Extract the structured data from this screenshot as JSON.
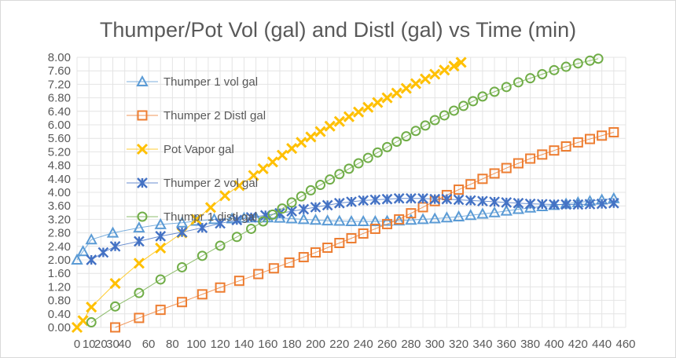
{
  "chart_data": {
    "type": "scatter",
    "title": "Thumper/Pot Vol (gal) and Distl (gal) vs Time (min)",
    "xlim": [
      0,
      460
    ],
    "ylim": [
      0,
      8
    ],
    "x_ticks": [
      "0",
      "10",
      "20",
      "30",
      "40",
      "60",
      "80",
      "100",
      "120",
      "140",
      "160",
      "180",
      "200",
      "220",
      "240",
      "260",
      "280",
      "300",
      "320",
      "340",
      "360",
      "380",
      "400",
      "420",
      "440",
      "460"
    ],
    "y_ticks": [
      "0.00",
      "0.40",
      "0.80",
      "1.20",
      "1.60",
      "2.00",
      "2.40",
      "2.80",
      "3.20",
      "3.60",
      "4.00",
      "4.40",
      "4.80",
      "5.20",
      "5.60",
      "6.00",
      "6.40",
      "6.80",
      "7.20",
      "7.60",
      "8.00"
    ],
    "grid": true,
    "legend_position": "upper-left",
    "series": [
      {
        "name": "Thumper 1 vol gal",
        "marker": "triangle",
        "color": "#5b9bd5",
        "x": [
          0,
          5,
          12,
          30,
          52,
          70,
          88,
          100,
          115,
          130,
          140,
          150,
          160,
          170,
          180,
          190,
          200,
          210,
          220,
          230,
          240,
          250,
          260,
          270,
          280,
          290,
          300,
          310,
          320,
          330,
          340,
          350,
          360,
          370,
          380,
          390,
          400,
          410,
          420,
          430,
          440,
          450
        ],
        "y": [
          2.0,
          2.25,
          2.6,
          2.8,
          2.95,
          3.05,
          3.1,
          3.15,
          3.2,
          3.22,
          3.24,
          3.25,
          3.25,
          3.24,
          3.22,
          3.2,
          3.18,
          3.16,
          3.15,
          3.14,
          3.14,
          3.14,
          3.15,
          3.16,
          3.18,
          3.2,
          3.22,
          3.25,
          3.28,
          3.32,
          3.36,
          3.4,
          3.45,
          3.5,
          3.54,
          3.58,
          3.62,
          3.66,
          3.7,
          3.74,
          3.78,
          3.82
        ]
      },
      {
        "name": "Thumper 2 Distl gal",
        "marker": "square",
        "color": "#ed7d31",
        "x": [
          32,
          52,
          70,
          88,
          105,
          120,
          136,
          152,
          165,
          178,
          190,
          200,
          210,
          220,
          230,
          240,
          250,
          260,
          270,
          280,
          290,
          300,
          310,
          320,
          330,
          340,
          350,
          360,
          370,
          380,
          390,
          400,
          410,
          420,
          430,
          440,
          450
        ],
        "y": [
          0.0,
          0.28,
          0.52,
          0.75,
          0.98,
          1.18,
          1.38,
          1.58,
          1.75,
          1.92,
          2.08,
          2.22,
          2.36,
          2.5,
          2.64,
          2.78,
          2.92,
          3.06,
          3.2,
          3.38,
          3.56,
          3.74,
          3.92,
          4.08,
          4.24,
          4.4,
          4.56,
          4.72,
          4.86,
          5.0,
          5.12,
          5.24,
          5.36,
          5.48,
          5.58,
          5.68,
          5.78
        ]
      },
      {
        "name": "Pot Vapor gal",
        "marker": "x",
        "color": "#ffc000",
        "x": [
          0,
          5,
          12,
          32,
          52,
          70,
          88,
          100,
          112,
          124,
          136,
          148,
          156,
          164,
          172,
          180,
          188,
          196,
          204,
          212,
          220,
          228,
          236,
          244,
          252,
          260,
          268,
          276,
          284,
          292,
          300,
          308,
          316,
          322
        ],
        "y": [
          0.0,
          0.2,
          0.6,
          1.3,
          1.9,
          2.35,
          2.8,
          3.2,
          3.55,
          3.9,
          4.2,
          4.5,
          4.7,
          4.9,
          5.1,
          5.3,
          5.48,
          5.64,
          5.8,
          5.96,
          6.1,
          6.24,
          6.38,
          6.52,
          6.66,
          6.8,
          6.94,
          7.08,
          7.22,
          7.36,
          7.5,
          7.62,
          7.74,
          7.85
        ]
      },
      {
        "name": "Thumper 2 vol gal",
        "marker": "star",
        "color": "#4472c4",
        "x": [
          12,
          22,
          32,
          52,
          70,
          88,
          105,
          120,
          134,
          146,
          158,
          170,
          180,
          190,
          200,
          210,
          220,
          230,
          240,
          250,
          260,
          270,
          280,
          290,
          300,
          310,
          320,
          330,
          340,
          350,
          360,
          370,
          380,
          390,
          400,
          410,
          420,
          430,
          440,
          450
        ],
        "y": [
          2.0,
          2.22,
          2.4,
          2.55,
          2.7,
          2.82,
          2.95,
          3.08,
          3.18,
          3.26,
          3.32,
          3.38,
          3.44,
          3.5,
          3.56,
          3.62,
          3.68,
          3.72,
          3.76,
          3.78,
          3.8,
          3.82,
          3.82,
          3.82,
          3.8,
          3.8,
          3.78,
          3.76,
          3.74,
          3.72,
          3.7,
          3.68,
          3.66,
          3.65,
          3.64,
          3.64,
          3.64,
          3.65,
          3.66,
          3.68
        ]
      },
      {
        "name": "Thumpr 1 distl gal",
        "marker": "circle",
        "color": "#70ad47",
        "x": [
          12,
          32,
          52,
          70,
          88,
          105,
          120,
          134,
          146,
          156,
          164,
          172,
          180,
          188,
          196,
          204,
          212,
          220,
          228,
          236,
          244,
          252,
          260,
          268,
          276,
          284,
          292,
          300,
          308,
          316,
          324,
          332,
          340,
          350,
          360,
          370,
          380,
          390,
          400,
          410,
          420,
          430,
          437
        ],
        "y": [
          0.15,
          0.62,
          1.02,
          1.42,
          1.78,
          2.12,
          2.42,
          2.68,
          2.92,
          3.14,
          3.34,
          3.52,
          3.7,
          3.88,
          4.06,
          4.22,
          4.38,
          4.54,
          4.7,
          4.86,
          5.02,
          5.18,
          5.34,
          5.5,
          5.66,
          5.82,
          5.98,
          6.14,
          6.28,
          6.42,
          6.56,
          6.7,
          6.84,
          6.98,
          7.12,
          7.26,
          7.38,
          7.5,
          7.62,
          7.72,
          7.82,
          7.9,
          7.96
        ]
      }
    ]
  }
}
